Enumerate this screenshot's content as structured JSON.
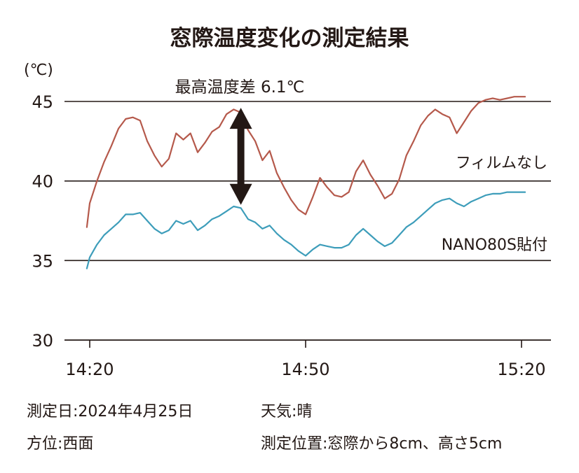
{
  "chart_data": {
    "type": "line",
    "title": "窓際温度変化の測定結果",
    "unit_label": "(℃)",
    "ylim": [
      30,
      46.5
    ],
    "y_ticks": [
      30,
      35,
      40,
      45
    ],
    "y_tick_labels": [
      "30",
      "35",
      "40",
      "45"
    ],
    "x_domain_minutes": [
      870,
      921
    ],
    "x_ticks": [
      860,
      890,
      920
    ],
    "x_tick_labels": [
      "14:20",
      "14:50",
      "15:20"
    ],
    "grid_lines_y": [
      35,
      40,
      45
    ],
    "series": [
      {
        "name": "フィルムなし",
        "color": "#b5594b",
        "x": [
          859.6,
          860,
          861,
          862,
          863,
          864,
          865,
          866,
          867,
          868,
          869,
          870,
          871,
          872,
          873,
          874,
          875,
          876,
          877,
          878,
          879,
          880,
          881,
          882,
          883,
          884,
          885,
          886,
          887,
          888,
          889,
          890,
          891,
          892,
          893,
          894,
          895,
          896,
          897,
          898,
          899,
          900,
          901,
          902,
          903,
          904,
          905,
          906,
          907,
          908,
          909,
          910,
          911,
          912,
          913,
          914,
          915,
          916,
          917,
          918,
          919,
          920,
          920.5
        ],
        "values": [
          37.1,
          38.6,
          40.0,
          41.2,
          42.2,
          43.3,
          43.9,
          44.0,
          43.8,
          42.5,
          41.6,
          40.9,
          41.4,
          43.0,
          42.6,
          43.0,
          41.8,
          42.4,
          43.1,
          43.4,
          44.2,
          44.5,
          44.3,
          43.2,
          42.5,
          41.3,
          41.9,
          40.5,
          39.6,
          38.8,
          38.2,
          37.9,
          39.0,
          40.2,
          39.6,
          39.1,
          39.0,
          39.3,
          40.6,
          41.3,
          40.4,
          39.7,
          38.9,
          39.2,
          40.1,
          41.6,
          42.5,
          43.5,
          44.1,
          44.5,
          44.2,
          44.0,
          43.0,
          43.7,
          44.4,
          44.9,
          45.1,
          45.2,
          45.1,
          45.2,
          45.3,
          45.3,
          45.3
        ]
      },
      {
        "name": "NANO80S貼付",
        "color": "#3d9dba",
        "x": [
          859.6,
          860,
          861,
          862,
          863,
          864,
          865,
          866,
          867,
          868,
          869,
          870,
          871,
          872,
          873,
          874,
          875,
          876,
          877,
          878,
          879,
          880,
          881,
          882,
          883,
          884,
          885,
          886,
          887,
          888,
          889,
          890,
          891,
          892,
          893,
          894,
          895,
          896,
          897,
          898,
          899,
          900,
          901,
          902,
          903,
          904,
          905,
          906,
          907,
          908,
          909,
          910,
          911,
          912,
          913,
          914,
          915,
          916,
          917,
          918,
          919,
          920,
          920.5
        ],
        "values": [
          34.5,
          35.2,
          36.0,
          36.6,
          37.0,
          37.4,
          37.9,
          37.9,
          38.0,
          37.5,
          37.0,
          36.7,
          36.9,
          37.5,
          37.3,
          37.5,
          36.9,
          37.2,
          37.6,
          37.8,
          38.1,
          38.4,
          38.3,
          37.6,
          37.4,
          37.0,
          37.2,
          36.7,
          36.3,
          36.0,
          35.6,
          35.3,
          35.7,
          36.0,
          35.9,
          35.8,
          35.8,
          36.0,
          36.6,
          37.0,
          36.6,
          36.2,
          35.9,
          36.1,
          36.6,
          37.1,
          37.4,
          37.8,
          38.2,
          38.6,
          38.8,
          38.9,
          38.6,
          38.4,
          38.7,
          38.9,
          39.1,
          39.2,
          39.2,
          39.3,
          39.3,
          39.3,
          39.3
        ]
      }
    ],
    "annotation": {
      "label": "最高温度差 6.1℃",
      "x_minute": 881,
      "y_from": 38.5,
      "y_to": 44.6
    },
    "legend": "inline labels near line ends",
    "grid": false
  },
  "footer": {
    "date": "測定日:2024年4月25日",
    "direction": "方位:西面",
    "weather": "天気:晴",
    "position": "測定位置:窓際から8cm、高さ5cm"
  }
}
